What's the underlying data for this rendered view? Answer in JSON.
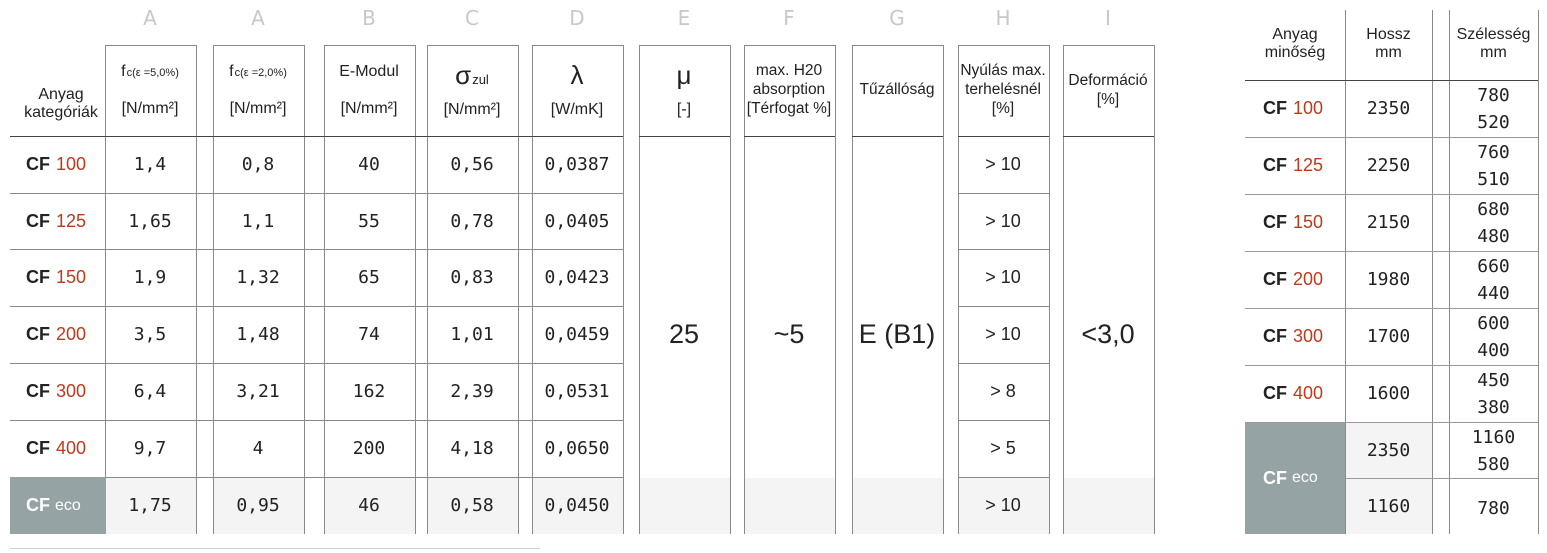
{
  "column_letters": [
    "A",
    "A",
    "B",
    "C",
    "D",
    "E",
    "F",
    "G",
    "H",
    "I"
  ],
  "main_table": {
    "row_header": [
      "Anyag",
      "kategóriák"
    ],
    "headers": [
      {
        "top": "f",
        "sub": "c(ε =5,0%)",
        "unit": "[N/mm²]"
      },
      {
        "top": "f",
        "sub": "c(ε =2,0%)",
        "unit": "[N/mm²]"
      },
      {
        "top": "E-Modul",
        "unit": "[N/mm²]"
      },
      {
        "sym": "σ",
        "sub": "zul",
        "unit": "[N/mm²]"
      },
      {
        "sym": "λ",
        "unit": "[W/mK]"
      },
      {
        "sym": "μ",
        "unit": "[-]"
      },
      {
        "lines": [
          "max. H20",
          "absorption",
          "[Térfogat %]"
        ]
      },
      {
        "lines": [
          "Tűzállóság"
        ]
      },
      {
        "lines": [
          "Nyúlás max.",
          "terhelésnél",
          "[%]"
        ]
      },
      {
        "lines": [
          "Deformáció",
          "[%]"
        ]
      }
    ],
    "rows": [
      {
        "prefix": "CF",
        "grade": "100",
        "values": [
          "1,4",
          "0,8",
          "40",
          "0,56",
          "0,0387"
        ],
        "h": "> 10"
      },
      {
        "prefix": "CF",
        "grade": "125",
        "values": [
          "1,65",
          "1,1",
          "55",
          "0,78",
          "0,0405"
        ],
        "h": "> 10"
      },
      {
        "prefix": "CF",
        "grade": "150",
        "values": [
          "1,9",
          "1,32",
          "65",
          "0,83",
          "0,0423"
        ],
        "h": "> 10"
      },
      {
        "prefix": "CF",
        "grade": "200",
        "values": [
          "3,5",
          "1,48",
          "74",
          "1,01",
          "0,0459"
        ],
        "h": "> 10"
      },
      {
        "prefix": "CF",
        "grade": "300",
        "values": [
          "6,4",
          "3,21",
          "162",
          "2,39",
          "0,0531"
        ],
        "h": "> 8"
      },
      {
        "prefix": "CF",
        "grade": "400",
        "values": [
          "9,7",
          "4",
          "200",
          "4,18",
          "0,0650"
        ],
        "h": "> 5"
      },
      {
        "prefix": "CF",
        "grade": "eco",
        "values": [
          "1,75",
          "0,95",
          "46",
          "0,58",
          "0,0450"
        ],
        "h": "> 10"
      }
    ],
    "merged": {
      "mu": "25",
      "absorption": "~5",
      "fire": "E (B1)",
      "deformation": "<3,0"
    }
  },
  "size_table": {
    "headers": [
      [
        "Anyag",
        "minőség"
      ],
      [
        "Hossz",
        "mm"
      ],
      [
        "Szélesség",
        "mm"
      ]
    ],
    "rows": [
      {
        "prefix": "CF",
        "grade": "100",
        "length": "2350",
        "widths": [
          "780",
          "520"
        ]
      },
      {
        "prefix": "CF",
        "grade": "125",
        "length": "2250",
        "widths": [
          "760",
          "510"
        ]
      },
      {
        "prefix": "CF",
        "grade": "150",
        "length": "2150",
        "widths": [
          "680",
          "480"
        ]
      },
      {
        "prefix": "CF",
        "grade": "200",
        "length": "1980",
        "widths": [
          "660",
          "440"
        ]
      },
      {
        "prefix": "CF",
        "grade": "300",
        "length": "1700",
        "widths": [
          "600",
          "400"
        ]
      },
      {
        "prefix": "CF",
        "grade": "400",
        "length": "1600",
        "widths": [
          "450",
          "380"
        ]
      }
    ],
    "eco": {
      "prefix": "CF",
      "grade": "eco",
      "rows": [
        {
          "length": "2350",
          "widths": [
            "1160",
            "580"
          ]
        },
        {
          "length": "1160",
          "widths": [
            "780"
          ]
        }
      ]
    }
  },
  "colors": {
    "accent": "#c0391b",
    "eco_fill": "#95a3a5",
    "letters": "#c8c8c8"
  }
}
